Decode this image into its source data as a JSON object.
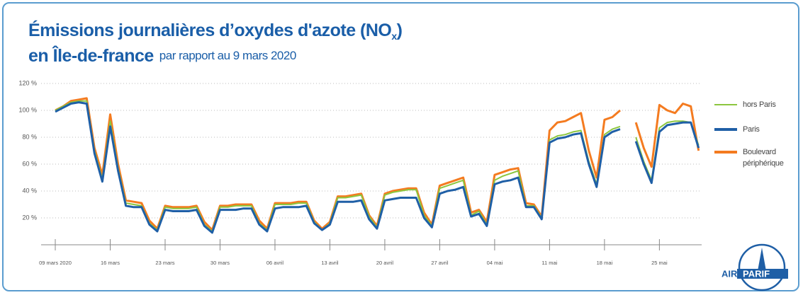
{
  "title": {
    "line1": "Émissions journalières d’oxydes d'azote (NO",
    "subscript": "x",
    "line1_end": ")",
    "line2": "en Île-de-france",
    "subtitle": "par rapport au 9 mars 2020"
  },
  "logo": [
    "AIR",
    "PARIF"
  ],
  "chart_data": {
    "type": "line",
    "categories": [
      "09 mars 2020",
      null,
      null,
      null,
      null,
      null,
      null,
      "16 mars",
      null,
      null,
      null,
      null,
      null,
      null,
      "23 mars",
      null,
      null,
      null,
      null,
      null,
      null,
      "30 mars",
      null,
      null,
      null,
      null,
      null,
      null,
      "06 avril",
      null,
      null,
      null,
      null,
      null,
      null,
      "13 avril",
      null,
      null,
      null,
      null,
      null,
      null,
      "20 avril",
      null,
      null,
      null,
      null,
      null,
      null,
      "27 avril",
      null,
      null,
      null,
      null,
      null,
      null,
      "04 mai",
      null,
      null,
      null,
      null,
      null,
      null,
      "11 mai",
      null,
      null,
      null,
      null,
      null,
      null,
      "18 mai",
      null,
      null,
      null,
      null,
      null,
      null,
      "25 mai",
      null,
      null,
      null,
      null,
      null
    ],
    "series": [
      {
        "name": "Boulevard périphérique",
        "color": "#f47b20",
        "values": [
          100,
          103,
          107,
          108,
          109,
          72,
          52,
          97,
          60,
          33,
          32,
          31,
          18,
          12,
          29,
          28,
          28,
          28,
          29,
          17,
          11,
          29,
          29,
          30,
          30,
          30,
          18,
          12,
          31,
          31,
          31,
          32,
          32,
          18,
          12,
          17,
          36,
          36,
          37,
          38,
          22,
          14,
          38,
          40,
          41,
          42,
          42,
          24,
          15,
          44,
          46,
          48,
          50,
          24,
          26,
          17,
          52,
          54,
          56,
          57,
          31,
          30,
          21,
          85,
          91,
          92,
          95,
          98,
          70,
          50,
          93,
          95,
          100,
          null,
          91,
          72,
          58,
          104,
          100,
          98,
          105,
          103,
          70
        ]
      },
      {
        "name": "hors Paris",
        "color": "#8cc63f",
        "values": [
          100,
          103,
          106,
          107,
          107,
          70,
          49,
          92,
          57,
          31,
          30,
          29,
          16,
          11,
          28,
          27,
          27,
          27,
          28,
          15,
          10,
          28,
          28,
          29,
          29,
          29,
          16,
          11,
          30,
          30,
          30,
          31,
          31,
          17,
          11,
          16,
          35,
          35,
          36,
          37,
          21,
          13,
          37,
          39,
          40,
          41,
          41,
          22,
          14,
          42,
          44,
          46,
          48,
          22,
          25,
          15,
          48,
          51,
          53,
          55,
          29,
          29,
          20,
          78,
          81,
          82,
          84,
          85,
          62,
          45,
          82,
          86,
          88,
          null,
          80,
          62,
          48,
          87,
          91,
          92,
          92,
          91,
          74
        ]
      },
      {
        "name": "Paris",
        "color": "#1f5fa6",
        "values": [
          99,
          102,
          105,
          106,
          105,
          68,
          47,
          88,
          55,
          29,
          28,
          28,
          15,
          10,
          26,
          25,
          25,
          25,
          26,
          14,
          9,
          26,
          26,
          26,
          27,
          27,
          15,
          10,
          27,
          28,
          28,
          28,
          29,
          16,
          11,
          15,
          32,
          32,
          32,
          33,
          19,
          12,
          33,
          34,
          35,
          35,
          35,
          20,
          13,
          38,
          40,
          41,
          43,
          21,
          23,
          14,
          45,
          47,
          48,
          50,
          28,
          28,
          19,
          76,
          79,
          80,
          82,
          83,
          60,
          43,
          80,
          84,
          86,
          null,
          77,
          60,
          46,
          84,
          89,
          90,
          91,
          91,
          72
        ]
      }
    ],
    "legend_order": [
      "hors Paris",
      "Paris",
      "Boulevard périphérique"
    ],
    "ylim": [
      0,
      120
    ],
    "yticks": [
      {
        "value": 20,
        "label": "20 %"
      },
      {
        "value": 40,
        "label": "40 %"
      },
      {
        "value": 60,
        "label": "60 %"
      },
      {
        "value": 80,
        "label": "80 %"
      },
      {
        "value": 100,
        "label": "100 %"
      },
      {
        "value": 120,
        "label": "120 %"
      }
    ],
    "grid": true
  }
}
